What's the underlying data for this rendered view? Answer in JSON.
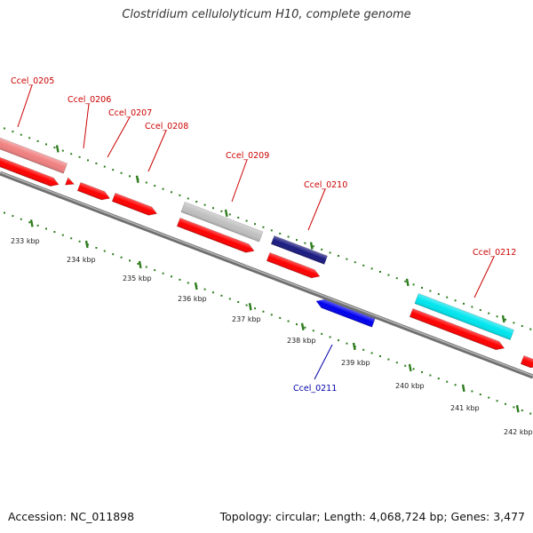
{
  "title": "Clostridium cellulolyticum H10, complete genome",
  "footer": {
    "accession": "Accession: NC_011898",
    "topology": "Topology: circular; Length: 4,068,724 bp; Genes: 3,477"
  },
  "colors": {
    "cds": "#ff0000",
    "gene_label": "#cc0000",
    "minus_label": "#0000aa",
    "backbone": "#888888",
    "tick": "#2e7d1e"
  },
  "ruler_labels": [
    "233 kbp",
    "234 kbp",
    "235 kbp",
    "236 kbp",
    "237 kbp",
    "238 kbp",
    "239 kbp",
    "240 kbp",
    "241 kbp",
    "242 kbp"
  ],
  "genes": [
    {
      "label": "Ccel_0205",
      "strand": "+",
      "color": "#f08080"
    },
    {
      "label": "Ccel_0206",
      "strand": "+",
      "color": "#ff0000"
    },
    {
      "label": "Ccel_0207",
      "strand": "+",
      "color": "#ff0000"
    },
    {
      "label": "Ccel_0208",
      "strand": "+",
      "color": "#ff0000"
    },
    {
      "label": "Ccel_0209",
      "strand": "+",
      "color": "#c0c0c0"
    },
    {
      "label": "Ccel_0210",
      "strand": "+",
      "color": "#1a1a80"
    },
    {
      "label": "Ccel_0211",
      "strand": "-",
      "color": "#0000ee"
    },
    {
      "label": "Ccel_0212",
      "strand": "+",
      "color": "#00e5ee"
    }
  ]
}
